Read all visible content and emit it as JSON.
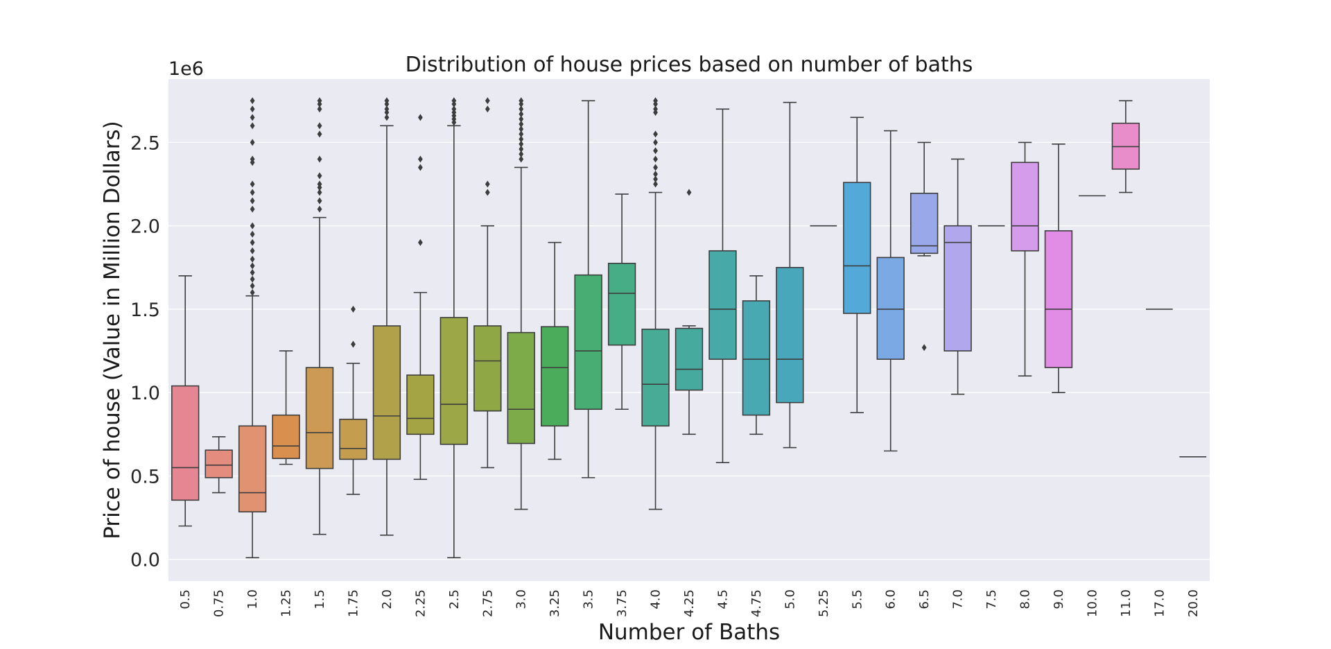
{
  "chart_data": {
    "type": "box",
    "title": "Distribution of house prices based on number of baths",
    "xlabel": "Number of Baths",
    "ylabel": "Price of house (Value in Million Dollars)",
    "y_offset_label": "1e6",
    "ylim": [
      -130000,
      2880000
    ],
    "yticks": [
      0,
      500000,
      1000000,
      1500000,
      2000000,
      2500000
    ],
    "ytick_labels": [
      "0.0",
      "0.5",
      "1.0",
      "1.5",
      "2.0",
      "2.5"
    ],
    "grid": true,
    "background": "#eaeaf2",
    "line_color": "#3d3d3d",
    "boxes": [
      {
        "label": "0.5",
        "color": "#e68692",
        "whisker_low": 200000,
        "q1": 355000,
        "median": 550000,
        "q3": 1040000,
        "whisker_high": 1700000,
        "outliers": []
      },
      {
        "label": "0.75",
        "color": "#e48d7f",
        "whisker_low": 400000,
        "q1": 490000,
        "median": 565000,
        "q3": 655000,
        "whisker_high": 735000,
        "outliers": []
      },
      {
        "label": "1.0",
        "color": "#e19371",
        "whisker_low": 10000,
        "q1": 285000,
        "median": 400000,
        "q3": 800000,
        "whisker_high": 1580000,
        "outliers": [
          1600000,
          1640000,
          1680000,
          1720000,
          1760000,
          1800000,
          1850000,
          1900000,
          1950000,
          2000000,
          2100000,
          2150000,
          2200000,
          2250000,
          2380000,
          2400000,
          2500000,
          2600000,
          2650000,
          2700000,
          2750000
        ]
      },
      {
        "label": "1.25",
        "color": "#d98f4e",
        "whisker_low": 570000,
        "q1": 605000,
        "median": 680000,
        "q3": 865000,
        "whisker_high": 1250000,
        "outliers": []
      },
      {
        "label": "1.5",
        "color": "#cc9a54",
        "whisker_low": 150000,
        "q1": 545000,
        "median": 760000,
        "q3": 1150000,
        "whisker_high": 2050000,
        "outliers": [
          2100000,
          2150000,
          2200000,
          2230000,
          2250000,
          2300000,
          2400000,
          2550000,
          2600000,
          2700000,
          2730000,
          2750000
        ]
      },
      {
        "label": "1.75",
        "color": "#c49d4f",
        "whisker_low": 390000,
        "q1": 600000,
        "median": 665000,
        "q3": 840000,
        "whisker_high": 1175000,
        "outliers": [
          1290000,
          1500000
        ]
      },
      {
        "label": "2.0",
        "color": "#b1a14b",
        "whisker_low": 145000,
        "q1": 600000,
        "median": 860000,
        "q3": 1400000,
        "whisker_high": 2600000,
        "outliers": [
          2650000,
          2680000,
          2700000,
          2730000,
          2750000
        ]
      },
      {
        "label": "2.25",
        "color": "#a5a445",
        "whisker_low": 480000,
        "q1": 750000,
        "median": 845000,
        "q3": 1105000,
        "whisker_high": 1600000,
        "outliers": [
          1900000,
          2350000,
          2400000,
          2650000
        ]
      },
      {
        "label": "2.5",
        "color": "#9ca847",
        "whisker_low": 10000,
        "q1": 690000,
        "median": 930000,
        "q3": 1450000,
        "whisker_high": 2600000,
        "outliers": [
          2620000,
          2640000,
          2660000,
          2680000,
          2700000,
          2730000,
          2750000
        ]
      },
      {
        "label": "2.75",
        "color": "#8fa845",
        "whisker_low": 550000,
        "q1": 890000,
        "median": 1190000,
        "q3": 1400000,
        "whisker_high": 2000000,
        "outliers": [
          2200000,
          2250000,
          2700000,
          2750000
        ]
      },
      {
        "label": "3.0",
        "color": "#7dab4a",
        "whisker_low": 300000,
        "q1": 695000,
        "median": 900000,
        "q3": 1360000,
        "whisker_high": 2350000,
        "outliers": [
          2400000,
          2430000,
          2460000,
          2490000,
          2520000,
          2550000,
          2580000,
          2610000,
          2640000,
          2670000,
          2700000,
          2730000,
          2750000
        ]
      },
      {
        "label": "3.25",
        "color": "#4bac5b",
        "whisker_low": 600000,
        "q1": 800000,
        "median": 1150000,
        "q3": 1395000,
        "whisker_high": 1900000,
        "outliers": []
      },
      {
        "label": "3.5",
        "color": "#47ad72",
        "whisker_low": 490000,
        "q1": 900000,
        "median": 1250000,
        "q3": 1705000,
        "whisker_high": 2750000,
        "outliers": []
      },
      {
        "label": "3.75",
        "color": "#47ad86",
        "whisker_low": 900000,
        "q1": 1285000,
        "median": 1595000,
        "q3": 1775000,
        "whisker_high": 2190000,
        "outliers": []
      },
      {
        "label": "4.0",
        "color": "#47ab95",
        "whisker_low": 300000,
        "q1": 800000,
        "median": 1050000,
        "q3": 1380000,
        "whisker_high": 2200000,
        "outliers": [
          2250000,
          2280000,
          2310000,
          2350000,
          2400000,
          2450000,
          2500000,
          2550000,
          2680000,
          2700000,
          2730000,
          2750000
        ]
      },
      {
        "label": "4.25",
        "color": "#47aa9f",
        "whisker_low": 750000,
        "q1": 1015000,
        "median": 1140000,
        "q3": 1385000,
        "whisker_high": 1400000,
        "outliers": [
          2200000
        ]
      },
      {
        "label": "4.5",
        "color": "#47a9a8",
        "whisker_low": 580000,
        "q1": 1200000,
        "median": 1500000,
        "q3": 1850000,
        "whisker_high": 2700000,
        "outliers": []
      },
      {
        "label": "4.75",
        "color": "#48a9b2",
        "whisker_low": 750000,
        "q1": 865000,
        "median": 1200000,
        "q3": 1550000,
        "whisker_high": 1700000,
        "outliers": []
      },
      {
        "label": "5.0",
        "color": "#48a7bb",
        "whisker_low": 670000,
        "q1": 940000,
        "median": 1200000,
        "q3": 1750000,
        "whisker_high": 2740000,
        "outliers": []
      },
      {
        "label": "5.25",
        "color": "#4aa6c4",
        "whisker_low": 2000000,
        "q1": 2000000,
        "median": 2000000,
        "q3": 2000000,
        "whisker_high": 2000000,
        "outliers": []
      },
      {
        "label": "5.5",
        "color": "#53a9d8",
        "whisker_low": 880000,
        "q1": 1475000,
        "median": 1760000,
        "q3": 2260000,
        "whisker_high": 2650000,
        "outliers": []
      },
      {
        "label": "6.0",
        "color": "#7aa9e3",
        "whisker_low": 650000,
        "q1": 1200000,
        "median": 1500000,
        "q3": 1810000,
        "whisker_high": 2570000,
        "outliers": []
      },
      {
        "label": "6.5",
        "color": "#98a8e8",
        "whisker_low": 1820000,
        "q1": 1835000,
        "median": 1880000,
        "q3": 2195000,
        "whisker_high": 2500000,
        "outliers": [
          1270000
        ]
      },
      {
        "label": "7.0",
        "color": "#b0a7ec",
        "whisker_low": 990000,
        "q1": 1250000,
        "median": 1900000,
        "q3": 2000000,
        "whisker_high": 2400000,
        "outliers": []
      },
      {
        "label": "7.5",
        "color": "#c2a2ee",
        "whisker_low": 2000000,
        "q1": 2000000,
        "median": 2000000,
        "q3": 2000000,
        "whisker_high": 2000000,
        "outliers": []
      },
      {
        "label": "8.0",
        "color": "#d59cec",
        "whisker_low": 1100000,
        "q1": 1850000,
        "median": 2000000,
        "q3": 2380000,
        "whisker_high": 2500000,
        "outliers": []
      },
      {
        "label": "9.0",
        "color": "#e18de6",
        "whisker_low": 1000000,
        "q1": 1150000,
        "median": 1500000,
        "q3": 1970000,
        "whisker_high": 2490000,
        "outliers": []
      },
      {
        "label": "10.0",
        "color": "#e98bdd",
        "whisker_low": 2180000,
        "q1": 2180000,
        "median": 2180000,
        "q3": 2180000,
        "whisker_high": 2180000,
        "outliers": []
      },
      {
        "label": "11.0",
        "color": "#e88cca",
        "whisker_low": 2200000,
        "q1": 2340000,
        "median": 2475000,
        "q3": 2615000,
        "whisker_high": 2750000,
        "outliers": []
      },
      {
        "label": "17.0",
        "color": "#e88cb6",
        "whisker_low": 1500000,
        "q1": 1500000,
        "median": 1500000,
        "q3": 1500000,
        "whisker_high": 1500000,
        "outliers": []
      },
      {
        "label": "20.0",
        "color": "#e78aa3",
        "whisker_low": 615000,
        "q1": 615000,
        "median": 615000,
        "q3": 615000,
        "whisker_high": 615000,
        "outliers": []
      }
    ]
  }
}
